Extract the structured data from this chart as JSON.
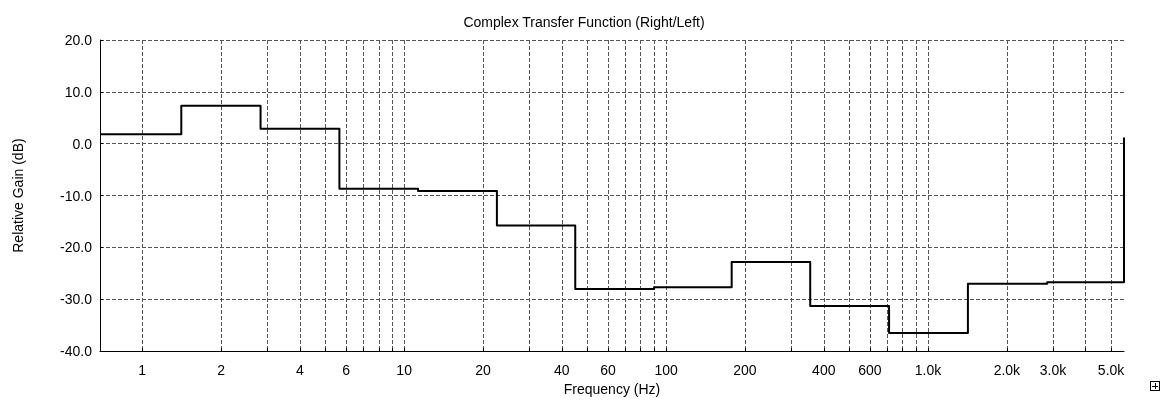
{
  "chart_data": {
    "type": "step",
    "title": "Complex Transfer Function (Right/Left)",
    "xlabel": "Frequency (Hz)",
    "ylabel": "Relative Gain (dB)",
    "log": "x",
    "grid": true,
    "marker": "none",
    "line_style": "solid",
    "xlim": [
      0.69,
      5600
    ],
    "ylim": [
      -40,
      20
    ],
    "xticks": [
      1,
      2,
      {
        "value": 3,
        "label": null
      },
      4,
      {
        "value": 5,
        "label": null
      },
      6,
      {
        "value": 7,
        "label": null
      },
      {
        "value": 8,
        "label": null
      },
      {
        "value": 9,
        "label": null
      },
      10,
      20,
      {
        "value": 30,
        "label": null
      },
      40,
      {
        "value": 50,
        "label": null
      },
      60,
      {
        "value": 70,
        "label": null
      },
      {
        "value": 80,
        "label": null
      },
      {
        "value": 90,
        "label": null
      },
      100,
      200,
      {
        "value": 300,
        "label": null
      },
      400,
      {
        "value": 500,
        "label": null
      },
      600,
      {
        "value": 700,
        "label": null
      },
      {
        "value": 800,
        "label": null
      },
      {
        "value": 900,
        "label": null
      },
      {
        "value": 1000,
        "label": "1.0k"
      },
      {
        "value": 2000,
        "label": "2.0k"
      },
      {
        "value": 3000,
        "label": "3.0k"
      },
      {
        "value": 4000,
        "label": null
      },
      {
        "value": 5000,
        "label": "5.0k"
      }
    ],
    "yticks": [
      {
        "value": 20,
        "label": "20.0"
      },
      {
        "value": 10,
        "label": "10.0"
      },
      {
        "value": 0,
        "label": "0.0"
      },
      {
        "value": -10,
        "label": "-10.0"
      },
      {
        "value": -20,
        "label": "-20.0"
      },
      {
        "value": -30,
        "label": "-30.0"
      },
      {
        "value": -40,
        "label": "-40.0"
      }
    ],
    "series": [
      {
        "color": "#000000",
        "x": [
          0.69,
          1.41,
          2.83,
          5.66,
          11.3,
          22.6,
          45,
          90,
          178,
          355,
          710,
          1420,
          2850,
          5600,
          5600
        ],
        "values": [
          1.8,
          7.3,
          2.9,
          -8.7,
          -9.1,
          -15.8,
          -28.0,
          -27.7,
          -22.8,
          -31.3,
          -36.5,
          -27.0,
          -26.7,
          -26.7,
          1.2
        ]
      }
    ]
  }
}
